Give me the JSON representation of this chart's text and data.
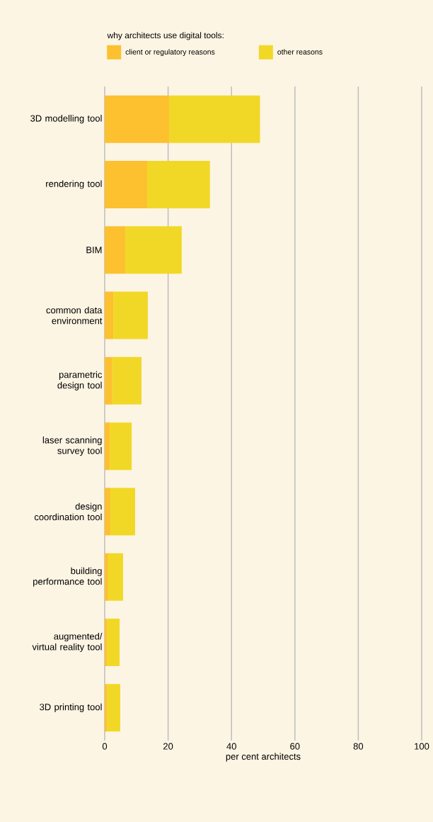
{
  "chart_data": {
    "type": "bar",
    "orientation": "horizontal",
    "stacked": true,
    "legend_title": "why architects use digital tools:",
    "xlabel": "per cent architects",
    "categories": [
      "3D modelling tool",
      "rendering tool",
      "BIM",
      "common data environment",
      "parametric design tool",
      "laser scanning survey tool",
      "design coordination tool",
      "building performance tool",
      "augmented/ virtual reality tool",
      "3D printing tool"
    ],
    "series": [
      {
        "name": "client or regulatory reasons",
        "color": "#fdc02f",
        "values": [
          20.3,
          13.4,
          6.5,
          2.7,
          2.4,
          1.6,
          1.8,
          1.1,
          0.7,
          0.7
        ]
      },
      {
        "name": "other reasons",
        "color": "#f2d826",
        "values": [
          28.7,
          19.8,
          17.8,
          10.9,
          9.2,
          6.9,
          7.8,
          4.7,
          4.0,
          4.2
        ]
      }
    ],
    "xlim": [
      0,
      100
    ],
    "xticks": [
      0,
      20,
      40,
      60,
      80,
      100
    ],
    "grid": "x",
    "legend": "top left"
  }
}
